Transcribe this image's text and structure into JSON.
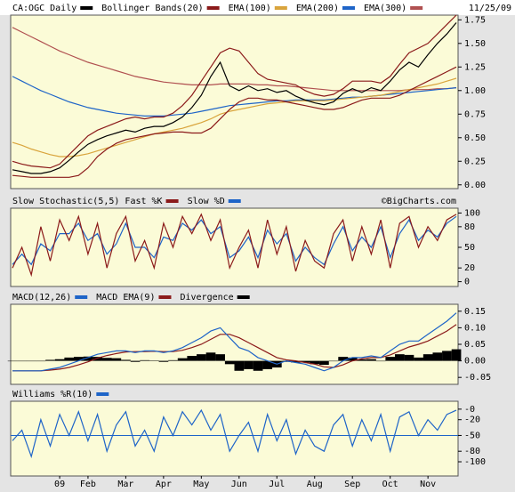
{
  "chart_data": [
    {
      "type": "line",
      "date": "11/25/09",
      "ylim": [
        -0.04,
        1.8
      ],
      "yticks": [
        {
          "value": 0,
          "label": "0.00"
        },
        0.25,
        {
          "value": 0.5,
          "label": "0.50"
        },
        0.75,
        {
          "value": 1,
          "label": "1.00"
        },
        1.25,
        {
          "value": 1.5,
          "label": "1.50"
        },
        1.75
      ],
      "grid": false,
      "series": [
        {
          "name": "CA:OGC Daily",
          "color": "#000000",
          "values": [
            0.16,
            0.14,
            0.12,
            0.12,
            0.14,
            0.18,
            0.26,
            0.35,
            0.43,
            0.48,
            0.52,
            0.55,
            0.58,
            0.56,
            0.6,
            0.62,
            0.62,
            0.66,
            0.72,
            0.82,
            0.95,
            1.15,
            1.3,
            1.05,
            1.0,
            1.05,
            1.0,
            1.02,
            0.98,
            1.0,
            0.94,
            0.9,
            0.87,
            0.85,
            0.88,
            0.97,
            1.02,
            0.98,
            1.03,
            1.0,
            1.1,
            1.22,
            1.3,
            1.25,
            1.38,
            1.5,
            1.6,
            1.72
          ]
        },
        {
          "name": "Bollinger Bands(20)",
          "color": "#8b1a1a",
          "upper": [
            0.25,
            0.22,
            0.2,
            0.19,
            0.18,
            0.22,
            0.32,
            0.42,
            0.52,
            0.58,
            0.62,
            0.66,
            0.7,
            0.72,
            0.7,
            0.72,
            0.72,
            0.76,
            0.84,
            0.95,
            1.1,
            1.25,
            1.4,
            1.45,
            1.42,
            1.3,
            1.18,
            1.12,
            1.1,
            1.08,
            1.06,
            1.0,
            0.96,
            0.94,
            0.96,
            1.02,
            1.1,
            1.1,
            1.1,
            1.08,
            1.15,
            1.28,
            1.4,
            1.45,
            1.5,
            1.6,
            1.7,
            1.8
          ],
          "lower": [
            0.1,
            0.09,
            0.08,
            0.08,
            0.08,
            0.08,
            0.08,
            0.1,
            0.18,
            0.3,
            0.38,
            0.44,
            0.48,
            0.5,
            0.52,
            0.54,
            0.55,
            0.56,
            0.56,
            0.55,
            0.55,
            0.6,
            0.7,
            0.8,
            0.88,
            0.92,
            0.92,
            0.9,
            0.9,
            0.88,
            0.86,
            0.84,
            0.82,
            0.8,
            0.8,
            0.82,
            0.86,
            0.9,
            0.92,
            0.92,
            0.92,
            0.95,
            1.0,
            1.05,
            1.1,
            1.15,
            1.2,
            1.25
          ]
        },
        {
          "name": "EMA(100)",
          "color": "#d9a43c",
          "values": [
            0.45,
            0.42,
            0.38,
            0.35,
            0.32,
            0.3,
            0.3,
            0.31,
            0.33,
            0.36,
            0.39,
            0.42,
            0.45,
            0.48,
            0.51,
            0.54,
            0.56,
            0.58,
            0.6,
            0.63,
            0.66,
            0.7,
            0.75,
            0.78,
            0.8,
            0.82,
            0.84,
            0.86,
            0.87,
            0.88,
            0.89,
            0.89,
            0.89,
            0.89,
            0.9,
            0.91,
            0.92,
            0.93,
            0.94,
            0.95,
            0.97,
            0.99,
            1.01,
            1.03,
            1.05,
            1.07,
            1.1,
            1.13
          ]
        },
        {
          "name": "EMA(200)",
          "color": "#1e64c8",
          "values": [
            1.15,
            1.1,
            1.05,
            1.0,
            0.96,
            0.92,
            0.88,
            0.85,
            0.82,
            0.8,
            0.78,
            0.76,
            0.75,
            0.74,
            0.73,
            0.73,
            0.73,
            0.74,
            0.75,
            0.76,
            0.78,
            0.8,
            0.82,
            0.84,
            0.85,
            0.86,
            0.87,
            0.88,
            0.89,
            0.89,
            0.9,
            0.9,
            0.9,
            0.9,
            0.91,
            0.92,
            0.93,
            0.93,
            0.94,
            0.95,
            0.96,
            0.97,
            0.98,
            0.99,
            1.0,
            1.01,
            1.02,
            1.03
          ]
        },
        {
          "name": "EMA(300)",
          "color": "#b05050",
          "values": [
            1.67,
            1.62,
            1.57,
            1.52,
            1.47,
            1.42,
            1.38,
            1.34,
            1.3,
            1.27,
            1.24,
            1.21,
            1.18,
            1.15,
            1.13,
            1.11,
            1.09,
            1.08,
            1.07,
            1.06,
            1.06,
            1.06,
            1.07,
            1.07,
            1.07,
            1.07,
            1.06,
            1.06,
            1.05,
            1.05,
            1.04,
            1.03,
            1.02,
            1.01,
            1.0,
            1.0,
            1.0,
            1.0,
            1.0,
            1.0,
            1.0,
            1.0,
            1.01,
            1.01,
            1.01,
            1.02,
            1.02,
            1.03
          ]
        }
      ]
    },
    {
      "type": "line",
      "title": "Slow Stochastic(5,5)",
      "watermark": "©BigCharts.com",
      "ylim": [
        -7,
        107
      ],
      "yticks": [
        0,
        20,
        50,
        80,
        100
      ],
      "grid": false,
      "series": [
        {
          "name": "Fast %K",
          "color": "#8b1a1a",
          "values": [
            20,
            50,
            10,
            80,
            30,
            90,
            60,
            95,
            40,
            85,
            20,
            70,
            95,
            30,
            60,
            20,
            85,
            50,
            95,
            70,
            98,
            60,
            90,
            20,
            50,
            75,
            20,
            90,
            40,
            80,
            15,
            60,
            30,
            20,
            70,
            90,
            30,
            80,
            40,
            90,
            20,
            85,
            95,
            50,
            80,
            60,
            90,
            98
          ]
        },
        {
          "name": "Slow %D",
          "color": "#1e64c8",
          "values": [
            25,
            40,
            25,
            55,
            45,
            70,
            70,
            85,
            60,
            70,
            40,
            55,
            85,
            50,
            50,
            35,
            65,
            60,
            85,
            75,
            90,
            70,
            80,
            35,
            45,
            65,
            35,
            75,
            55,
            70,
            30,
            50,
            35,
            25,
            55,
            80,
            45,
            65,
            50,
            80,
            35,
            70,
            90,
            60,
            75,
            65,
            85,
            95
          ]
        }
      ]
    },
    {
      "type": "line",
      "ylim": [
        -0.071,
        0.171
      ],
      "yticks": [
        -0.05,
        {
          "value": 0,
          "label": "0.00"
        },
        0.05,
        {
          "value": 0.1,
          "label": "0.10"
        },
        0.15
      ],
      "grid": false,
      "series": [
        {
          "name": "MACD(12,26)",
          "color": "#1e64c8",
          "values": [
            -0.03,
            -0.03,
            -0.03,
            -0.03,
            -0.025,
            -0.02,
            -0.01,
            0.0,
            0.01,
            0.02,
            0.025,
            0.03,
            0.03,
            0.025,
            0.03,
            0.03,
            0.025,
            0.03,
            0.04,
            0.055,
            0.07,
            0.09,
            0.1,
            0.07,
            0.04,
            0.03,
            0.01,
            0.0,
            -0.01,
            0.0,
            -0.005,
            -0.01,
            -0.02,
            -0.03,
            -0.02,
            0.0,
            0.01,
            0.01,
            0.015,
            0.01,
            0.03,
            0.05,
            0.06,
            0.06,
            0.08,
            0.1,
            0.12,
            0.145
          ]
        },
        {
          "name": "MACD EMA(9)",
          "color": "#8b1a1a",
          "values": [
            -0.03,
            -0.03,
            -0.03,
            -0.03,
            -0.028,
            -0.025,
            -0.02,
            -0.012,
            -0.003,
            0.008,
            0.016,
            0.022,
            0.027,
            0.028,
            0.028,
            0.029,
            0.028,
            0.028,
            0.032,
            0.04,
            0.05,
            0.065,
            0.08,
            0.08,
            0.07,
            0.055,
            0.04,
            0.025,
            0.01,
            0.003,
            0.0,
            -0.005,
            -0.01,
            -0.018,
            -0.02,
            -0.012,
            0.0,
            0.006,
            0.01,
            0.01,
            0.018,
            0.03,
            0.042,
            0.05,
            0.06,
            0.075,
            0.09,
            0.11
          ]
        },
        {
          "name": "Divergence",
          "type": "bar",
          "color": "#000000",
          "values": [
            0,
            0,
            0,
            0,
            0.003,
            0.005,
            0.01,
            0.012,
            0.013,
            0.012,
            0.009,
            0.008,
            0.003,
            -0.003,
            0.002,
            0.001,
            -0.003,
            0.002,
            0.008,
            0.015,
            0.02,
            0.025,
            0.02,
            -0.01,
            -0.03,
            -0.025,
            -0.03,
            -0.025,
            -0.02,
            -0.003,
            -0.005,
            -0.005,
            -0.01,
            -0.012,
            0.0,
            0.012,
            0.01,
            0.004,
            0.005,
            0.0,
            0.012,
            0.02,
            0.018,
            0.01,
            0.02,
            0.025,
            0.03,
            0.035
          ]
        }
      ]
    },
    {
      "type": "line",
      "ylim": [
        -127,
        15
      ],
      "yticks": [
        {
          "value": 0,
          "label": "-0"
        },
        -20,
        -50,
        -80,
        -100
      ],
      "grid": false,
      "reference_line": -50,
      "categories": [
        null,
        null,
        null,
        null,
        null,
        "09",
        null,
        null,
        "Feb",
        null,
        null,
        null,
        "Mar",
        null,
        null,
        null,
        "Apr",
        null,
        null,
        null,
        "May",
        null,
        null,
        null,
        "Jun",
        null,
        null,
        null,
        "Jul",
        null,
        null,
        null,
        "Aug",
        null,
        null,
        null,
        "Sep",
        null,
        null,
        null,
        "Oct",
        null,
        null,
        null,
        "Nov",
        null,
        null,
        null
      ],
      "series": [
        {
          "name": "Williams %R(10)",
          "color": "#1e64c8",
          "values": [
            -60,
            -40,
            -90,
            -20,
            -70,
            -10,
            -50,
            -5,
            -60,
            -10,
            -80,
            -30,
            -5,
            -70,
            -40,
            -80,
            -15,
            -50,
            -5,
            -30,
            -2,
            -40,
            -10,
            -80,
            -50,
            -25,
            -80,
            -10,
            -60,
            -20,
            -85,
            -40,
            -70,
            -80,
            -30,
            -10,
            -70,
            -20,
            -60,
            -10,
            -80,
            -15,
            -5,
            -50,
            -20,
            -40,
            -10,
            -2
          ]
        }
      ]
    }
  ]
}
